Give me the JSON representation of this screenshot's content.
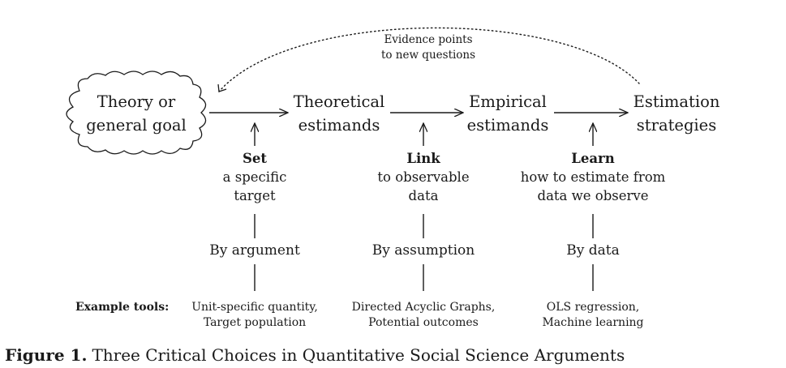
{
  "nodes": {
    "theory": [
      "Theory or",
      "general goal"
    ],
    "theoretical": [
      "Theoretical",
      "estimands"
    ],
    "empirical": [
      "Empirical",
      "estimands"
    ],
    "estimation": [
      "Estimation",
      "strategies"
    ]
  },
  "feedback": [
    "Evidence points",
    "to new questions"
  ],
  "choices": [
    {
      "verb": "Set",
      "desc": [
        "a specific",
        "target"
      ],
      "by": "By argument",
      "tools": [
        "Unit-specific quantity,",
        "Target population"
      ]
    },
    {
      "verb": "Link",
      "desc": [
        "to observable",
        "data"
      ],
      "by": "By assumption",
      "tools": [
        "Directed Acyclic Graphs,",
        "Potential outcomes"
      ]
    },
    {
      "verb": "Learn",
      "desc": [
        "how to estimate from",
        "data we observe"
      ],
      "by": "By data",
      "tools": [
        "OLS regression,",
        "Machine learning"
      ]
    }
  ],
  "tools_label": "Example tools:",
  "caption": {
    "number": "Figure 1.",
    "text": "Three Critical Choices in Quantitative Social Science Arguments"
  },
  "colors": {
    "ink": "#1a1a1a",
    "background": "#ffffff"
  }
}
